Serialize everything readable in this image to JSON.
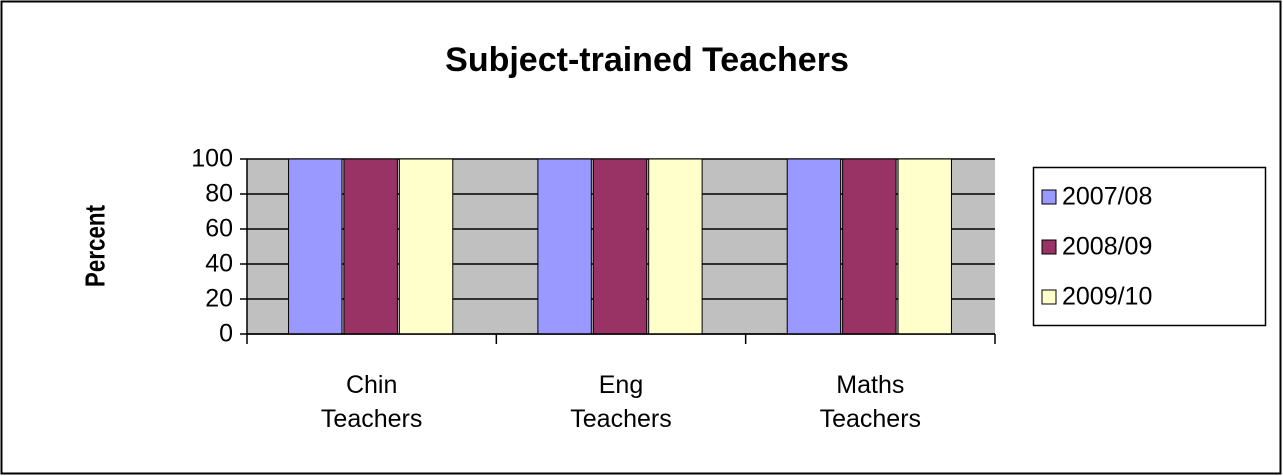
{
  "chart_data": {
    "type": "bar",
    "title": "Subject-trained Teachers",
    "y_label": "Percent",
    "categories": [
      "Chin Teachers",
      "Eng Teachers",
      "Maths Teachers"
    ],
    "series": [
      {
        "name": "2007/08",
        "color": "#9999ff",
        "values": [
          100,
          100,
          100
        ]
      },
      {
        "name": "2008/09",
        "color": "#993366",
        "values": [
          100,
          100,
          100
        ]
      },
      {
        "name": "2009/10",
        "color": "#ffffcc",
        "values": [
          100,
          100,
          100
        ]
      }
    ],
    "ylim": [
      0,
      100
    ],
    "yticks": [
      0,
      20,
      40,
      60,
      80,
      100
    ],
    "grid": true,
    "legend": "right"
  }
}
